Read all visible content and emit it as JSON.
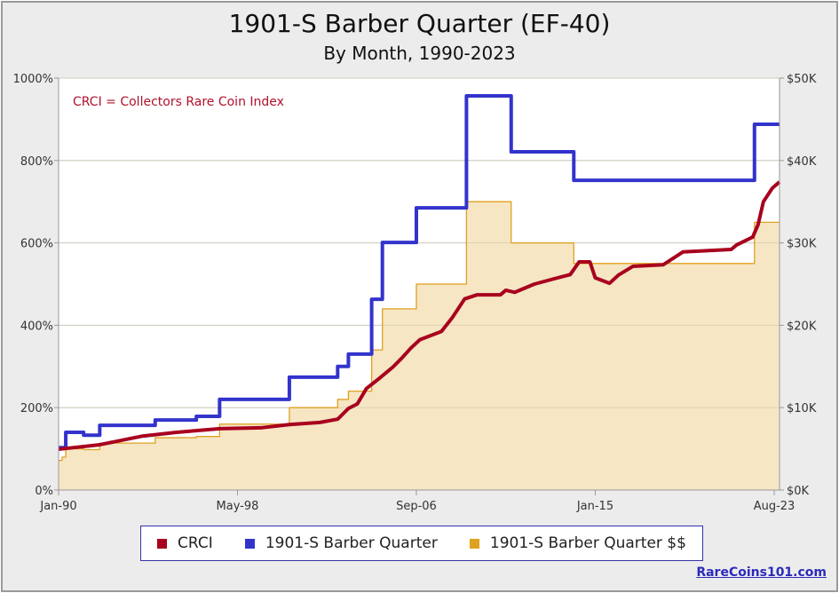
{
  "chart_data": {
    "type": "line",
    "title": "1901-S Barber Quarter (EF-40)",
    "subtitle": "By Month, 1990-2023",
    "annotation": "CRCI = Collectors Rare Coin Index",
    "x_range": [
      "1990-01",
      "2023-08"
    ],
    "x_ticks": [
      {
        "date": "1990-01",
        "label": "Jan-90"
      },
      {
        "date": "1998-05",
        "label": "May-98"
      },
      {
        "date": "2006-09",
        "label": "Sep-06"
      },
      {
        "date": "2015-01",
        "label": "Jan-15"
      },
      {
        "date": "2023-08",
        "label": "Aug-23"
      }
    ],
    "y_left": {
      "range": [
        0,
        1000
      ],
      "ticks": [
        0,
        200,
        400,
        600,
        800,
        1000
      ],
      "labels": [
        "0%",
        "200%",
        "400%",
        "600%",
        "800%",
        "1000%"
      ]
    },
    "y_right": {
      "range": [
        0,
        50000
      ],
      "ticks": [
        0,
        10000,
        20000,
        30000,
        40000,
        50000
      ],
      "labels": [
        "$0K",
        "$10K",
        "$20K",
        "$30K",
        "$40K",
        "$50K"
      ]
    },
    "grid": true,
    "legend_placement": "bottom",
    "series": [
      {
        "name": "CRCI",
        "axis": "left",
        "style": "line",
        "color": "#a8001e",
        "points": [
          [
            "1990-01",
            99
          ],
          [
            "1991-12",
            110
          ],
          [
            "1993-12",
            131
          ],
          [
            "1995-07",
            140
          ],
          [
            "1997-07",
            149
          ],
          [
            "1999-06",
            151
          ],
          [
            "2000-10",
            159
          ],
          [
            "2002-03",
            164
          ],
          [
            "2003-01",
            172
          ],
          [
            "2003-07",
            198
          ],
          [
            "2003-12",
            209
          ],
          [
            "2004-05",
            246
          ],
          [
            "2004-12",
            270
          ],
          [
            "2005-08",
            299
          ],
          [
            "2006-01",
            321
          ],
          [
            "2006-06",
            345
          ],
          [
            "2006-11",
            365
          ],
          [
            "2007-11",
            385
          ],
          [
            "2008-05",
            418
          ],
          [
            "2008-12",
            464
          ],
          [
            "2009-07",
            474
          ],
          [
            "2010-08",
            474
          ],
          [
            "2010-11",
            485
          ],
          [
            "2011-04",
            480
          ],
          [
            "2012-03",
            500
          ],
          [
            "2013-03",
            514
          ],
          [
            "2013-11",
            523
          ],
          [
            "2014-04",
            554
          ],
          [
            "2014-10",
            554
          ],
          [
            "2015-01",
            515
          ],
          [
            "2015-09",
            502
          ],
          [
            "2016-02",
            522
          ],
          [
            "2016-10",
            543
          ],
          [
            "2018-03",
            547
          ],
          [
            "2019-02",
            578
          ],
          [
            "2021-05",
            584
          ],
          [
            "2021-08",
            595
          ],
          [
            "2022-05",
            614
          ],
          [
            "2022-08",
            644
          ],
          [
            "2022-11",
            700
          ],
          [
            "2023-04",
            733
          ],
          [
            "2023-08",
            748
          ]
        ]
      },
      {
        "name": "1901-S Barber Quarter",
        "axis": "left",
        "style": "step",
        "color": "#3333cc",
        "points": [
          [
            "1990-01",
            103
          ],
          [
            "1990-05",
            140
          ],
          [
            "1991-03",
            133
          ],
          [
            "1991-12",
            157
          ],
          [
            "1994-07",
            170
          ],
          [
            "1996-06",
            179
          ],
          [
            "1997-07",
            220
          ],
          [
            "2000-10",
            274
          ],
          [
            "2003-01",
            300
          ],
          [
            "2003-07",
            330
          ],
          [
            "2004-08",
            463
          ],
          [
            "2005-02",
            601
          ],
          [
            "2006-09",
            685
          ],
          [
            "2009-01",
            957
          ],
          [
            "2011-02",
            821
          ],
          [
            "2014-01",
            752
          ],
          [
            "2022-06",
            888
          ],
          [
            "2023-08",
            888
          ]
        ]
      },
      {
        "name": "1901-S Barber Quarter $$",
        "axis": "right",
        "style": "step-area",
        "color": "#e0a020",
        "fill": "#f6e6c3",
        "points": [
          [
            "1990-01",
            3600
          ],
          [
            "1990-03",
            4000
          ],
          [
            "1990-05",
            5000
          ],
          [
            "1991-03",
            4900
          ],
          [
            "1991-12",
            5700
          ],
          [
            "1994-07",
            6350
          ],
          [
            "1996-06",
            6500
          ],
          [
            "1997-07",
            8000
          ],
          [
            "2000-10",
            10000
          ],
          [
            "2003-01",
            11000
          ],
          [
            "2003-07",
            12000
          ],
          [
            "2004-08",
            17000
          ],
          [
            "2005-02",
            22000
          ],
          [
            "2006-09",
            25000
          ],
          [
            "2009-01",
            35000
          ],
          [
            "2011-02",
            30000
          ],
          [
            "2014-01",
            27500
          ],
          [
            "2022-06",
            32500
          ],
          [
            "2023-08",
            32500
          ]
        ]
      }
    ]
  },
  "legend": {
    "items": [
      "CRCI",
      "1901-S Barber Quarter",
      "1901-S Barber Quarter $$"
    ],
    "colors": [
      "#a8001e",
      "#3333cc",
      "#e0a020"
    ]
  },
  "credit": "RareCoins101.com"
}
